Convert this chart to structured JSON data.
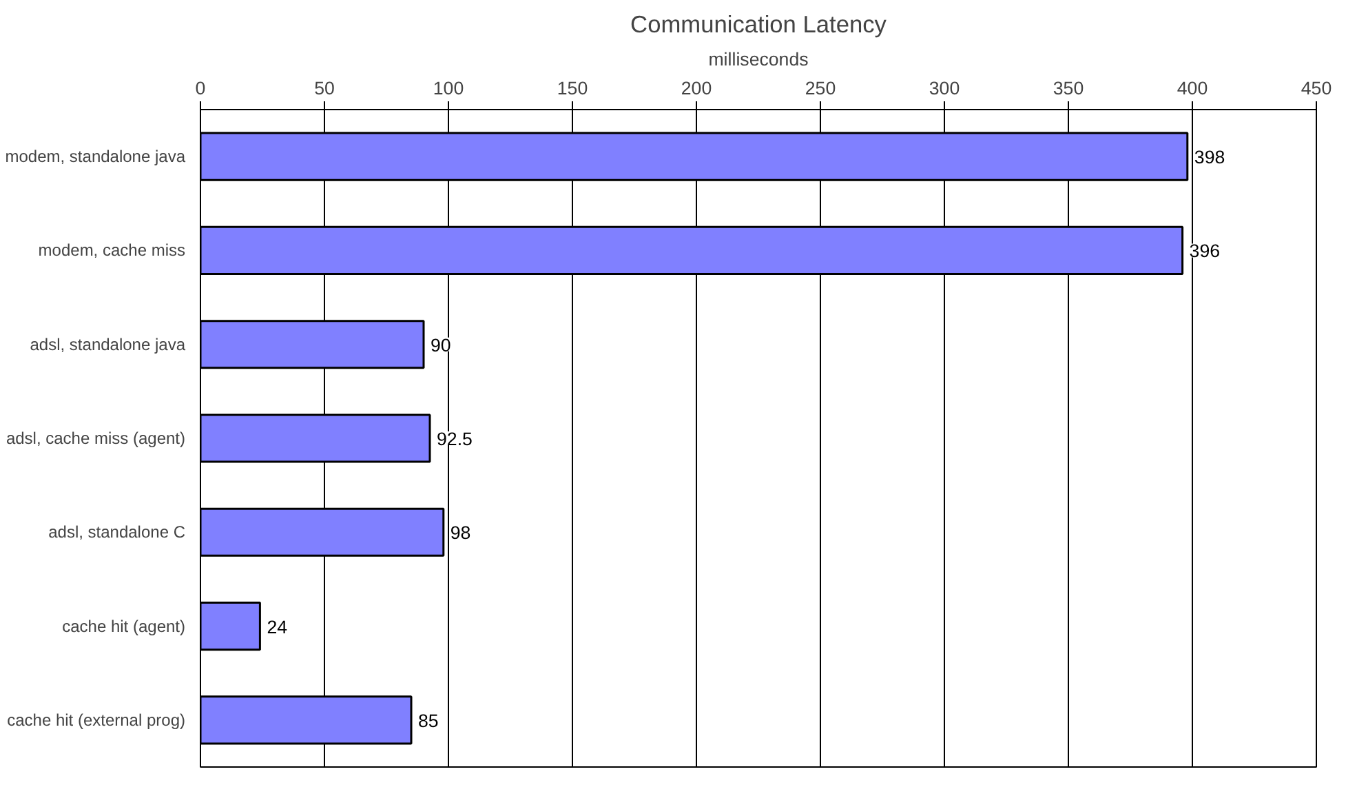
{
  "chart_data": {
    "type": "bar",
    "orientation": "horizontal",
    "title": "Communication Latency",
    "xlabel": "milliseconds",
    "categories": [
      "modem, standalone java",
      "modem, cache miss",
      "adsl, standalone java",
      "adsl, cache miss (agent)",
      "adsl, standalone C",
      "cache hit (agent)",
      "cache hit (external prog)"
    ],
    "values": [
      398,
      396,
      90,
      92.5,
      98,
      24,
      85
    ],
    "color": "#8080ff",
    "xlim": [
      0,
      450
    ],
    "xticks": [
      0,
      50,
      100,
      150,
      200,
      250,
      300,
      350,
      400,
      450
    ],
    "grid": "x",
    "data_labels": true
  }
}
